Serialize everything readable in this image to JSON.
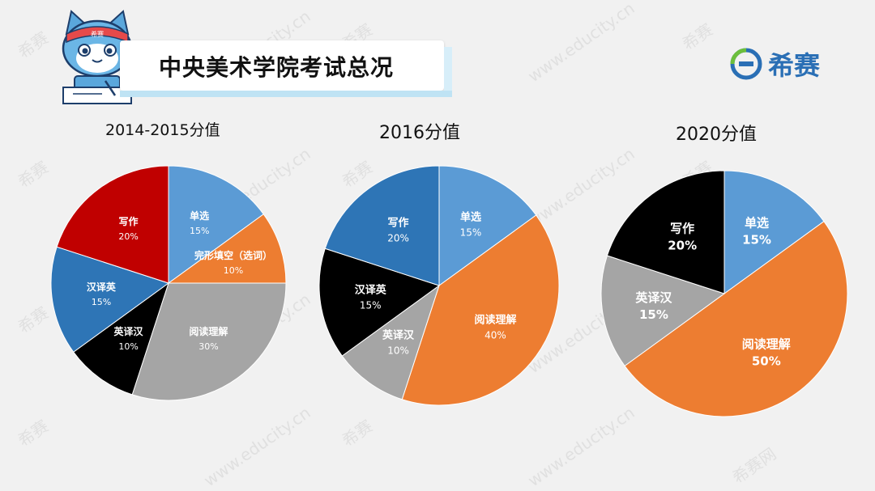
{
  "title": "中央美术学院考试总况",
  "brand": {
    "logo_text": "希赛",
    "mascot_headband": "希赛"
  },
  "watermark": {
    "url": "www.educity.cn",
    "mark": "希赛",
    "site": "希赛网"
  },
  "chart_data": [
    {
      "type": "pie",
      "title": "2014-2015分值",
      "slices": [
        {
          "label": "单选",
          "value": 15,
          "text": "15%",
          "color": "#5b9bd5"
        },
        {
          "label": "完形填空（选词）",
          "value": 10,
          "text": "10%",
          "color": "#ed7d31"
        },
        {
          "label": "阅读理解",
          "value": 30,
          "text": "30%",
          "color": "#a5a5a5"
        },
        {
          "label": "英译汉",
          "value": 10,
          "text": "10%",
          "color": "#000000"
        },
        {
          "label": "汉译英",
          "value": 15,
          "text": "15%",
          "color": "#2e75b6"
        },
        {
          "label": "写作",
          "value": 20,
          "text": "20%",
          "color": "#c00000"
        }
      ]
    },
    {
      "type": "pie",
      "title": "2016分值",
      "slices": [
        {
          "label": "单选",
          "value": 15,
          "text": "15%",
          "color": "#5b9bd5"
        },
        {
          "label": "阅读理解",
          "value": 40,
          "text": "40%",
          "color": "#ed7d31"
        },
        {
          "label": "英译汉",
          "value": 10,
          "text": "10%",
          "color": "#a5a5a5"
        },
        {
          "label": "汉译英",
          "value": 15,
          "text": "15%",
          "color": "#000000"
        },
        {
          "label": "写作",
          "value": 20,
          "text": "20%",
          "color": "#2e75b6"
        }
      ]
    },
    {
      "type": "pie",
      "title": "2020分值",
      "slices": [
        {
          "label": "单选",
          "value": 15,
          "text": "15%",
          "color": "#5b9bd5"
        },
        {
          "label": "阅读理解",
          "value": 50,
          "text": "50%",
          "color": "#ed7d31"
        },
        {
          "label": "英译汉",
          "value": 15,
          "text": "15%",
          "color": "#a5a5a5"
        },
        {
          "label": "写作",
          "value": 20,
          "text": "20%",
          "color": "#000000"
        }
      ]
    }
  ]
}
